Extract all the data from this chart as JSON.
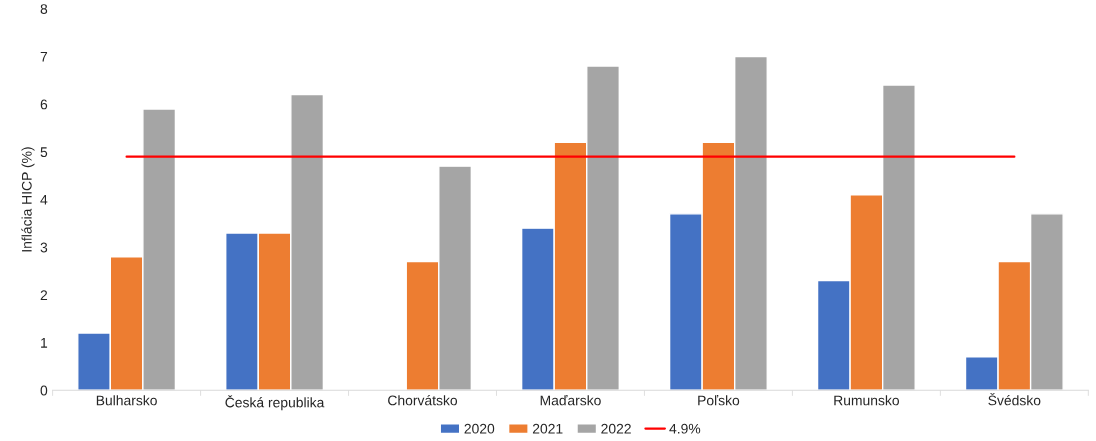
{
  "chart_data": {
    "type": "bar",
    "ylabel": "Inflácia HICP (%)",
    "categories": [
      "Bulharsko",
      "Česká republika",
      "Chorvátsko",
      "Maďarsko",
      "Poľsko",
      "Rumunsko",
      "Švédsko"
    ],
    "series": [
      {
        "name": "2020",
        "color": "#4472c4",
        "values": [
          1.2,
          3.3,
          null,
          3.4,
          3.7,
          2.3,
          0.7
        ]
      },
      {
        "name": "2021",
        "color": "#ed7d31",
        "values": [
          2.8,
          3.3,
          2.7,
          5.2,
          5.2,
          4.1,
          2.7
        ]
      },
      {
        "name": "2022",
        "color": "#a5a5a5",
        "values": [
          5.9,
          6.2,
          4.7,
          6.8,
          7.0,
          6.4,
          3.7
        ]
      },
      {
        "name": "4.9%",
        "type": "line",
        "color": "#ff0000",
        "values": [
          4.9,
          4.9,
          4.9,
          4.9,
          4.9,
          4.9,
          4.9
        ]
      }
    ],
    "ylim": [
      0,
      8
    ],
    "yticks": [
      0,
      1,
      2,
      3,
      4,
      5,
      6,
      7,
      8
    ],
    "grid": false,
    "legend": "bottom"
  }
}
